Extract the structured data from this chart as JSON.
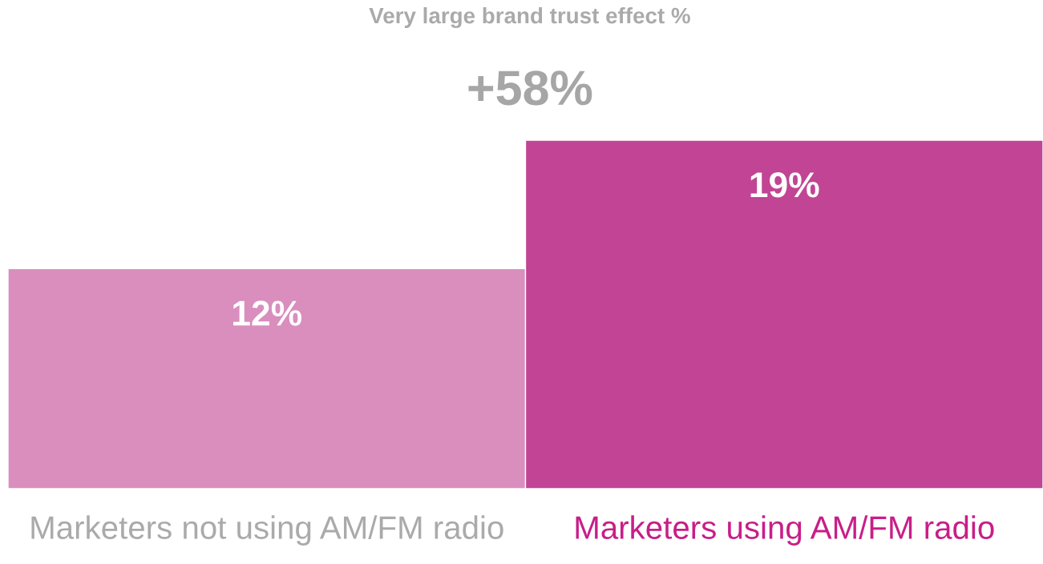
{
  "chart_data": {
    "type": "bar",
    "title": "Very large brand trust effect %",
    "categories": [
      "Marketers not using AM/FM radio",
      "Marketers using AM/FM radio"
    ],
    "values": [
      12,
      19
    ],
    "colors": [
      "#d98ebe",
      "#c14594"
    ],
    "value_labels": [
      "12%",
      "19%"
    ],
    "ylim": [
      0,
      19
    ],
    "annotations": [
      "+58%"
    ],
    "grid": false,
    "legend": false
  }
}
